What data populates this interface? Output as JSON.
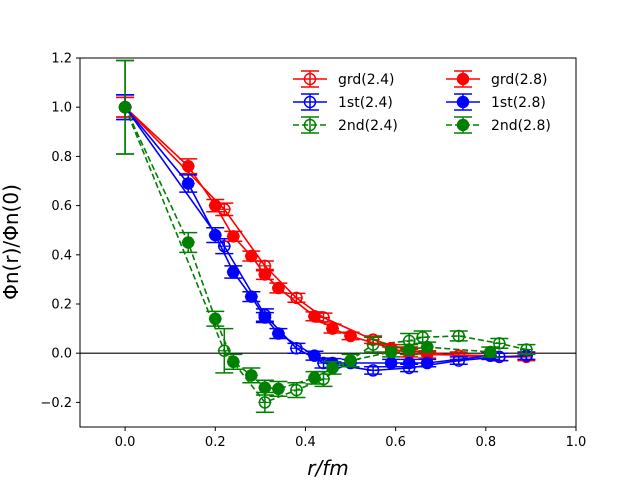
{
  "chart_data": {
    "type": "line",
    "title": "",
    "xlabel": "r/fm",
    "ylabel": "Φn(r)/Φn(0)",
    "xlim": [
      -0.1,
      1.0
    ],
    "ylim": [
      -0.3,
      1.2
    ],
    "xticks": [
      0.0,
      0.2,
      0.4,
      0.6,
      0.8,
      1.0
    ],
    "yticks": [
      -0.2,
      0.0,
      0.2,
      0.4,
      0.6,
      0.8,
      1.0,
      1.2
    ],
    "xtick_labels": [
      "0.0",
      "0.2",
      "0.4",
      "0.6",
      "0.8",
      "1.0"
    ],
    "ytick_labels": [
      "−0.2",
      "0.0",
      "0.2",
      "0.4",
      "0.6",
      "0.8",
      "1.0",
      "1.2"
    ],
    "reference_line_y": 0.0,
    "legend_position": "top-right",
    "legend_columns": 2,
    "series": [
      {
        "name": "grd(2.4)",
        "color": "#ff0000",
        "filled": false,
        "dashed": false,
        "x": [
          0.0,
          0.22,
          0.31,
          0.38,
          0.44,
          0.55,
          0.63,
          0.74,
          0.83,
          0.89
        ],
        "y": [
          1.0,
          0.585,
          0.355,
          0.225,
          0.145,
          0.055,
          0.01,
          -0.01,
          -0.015,
          -0.015
        ],
        "err": [
          0.04,
          0.025,
          0.02,
          0.018,
          0.018,
          0.015,
          0.015,
          0.015,
          0.015,
          0.015
        ]
      },
      {
        "name": "1st(2.4)",
        "color": "#0000ff",
        "filled": false,
        "dashed": false,
        "x": [
          0.0,
          0.22,
          0.31,
          0.38,
          0.44,
          0.55,
          0.63,
          0.74,
          0.83,
          0.89
        ],
        "y": [
          1.0,
          0.435,
          0.155,
          0.02,
          -0.04,
          -0.07,
          -0.06,
          -0.03,
          -0.015,
          -0.01
        ],
        "err": [
          0.05,
          0.03,
          0.025,
          0.02,
          0.02,
          0.015,
          0.015,
          0.015,
          0.015,
          0.015
        ]
      },
      {
        "name": "2nd(2.4)",
        "color": "#008000",
        "filled": false,
        "dashed": true,
        "x": [
          0.0,
          0.22,
          0.31,
          0.38,
          0.44,
          0.55,
          0.63,
          0.66,
          0.74,
          0.83,
          0.89
        ],
        "y": [
          1.0,
          0.01,
          -0.2,
          -0.15,
          -0.105,
          0.035,
          0.05,
          0.065,
          0.07,
          0.04,
          0.015
        ],
        "err": [
          0.19,
          0.09,
          0.04,
          0.03,
          0.03,
          0.03,
          0.03,
          0.025,
          0.02,
          0.02,
          0.02
        ]
      },
      {
        "name": "grd(2.8)",
        "color": "#ff0000",
        "filled": true,
        "dashed": false,
        "x": [
          0.0,
          0.14,
          0.2,
          0.24,
          0.28,
          0.31,
          0.34,
          0.42,
          0.46,
          0.5,
          0.59,
          0.63,
          0.67,
          0.81
        ],
        "y": [
          1.0,
          0.76,
          0.6,
          0.475,
          0.395,
          0.32,
          0.265,
          0.15,
          0.1,
          0.07,
          0.02,
          0.0,
          -0.005,
          -0.01
        ],
        "err": [
          0.04,
          0.03,
          0.025,
          0.02,
          0.02,
          0.02,
          0.02,
          0.018,
          0.018,
          0.015,
          0.015,
          0.015,
          0.015,
          0.015
        ]
      },
      {
        "name": "1st(2.8)",
        "color": "#0000ff",
        "filled": true,
        "dashed": false,
        "x": [
          0.0,
          0.14,
          0.2,
          0.24,
          0.28,
          0.31,
          0.34,
          0.42,
          0.46,
          0.5,
          0.59,
          0.63,
          0.67,
          0.81
        ],
        "y": [
          1.0,
          0.69,
          0.48,
          0.33,
          0.23,
          0.145,
          0.08,
          -0.01,
          -0.04,
          -0.04,
          -0.04,
          -0.04,
          -0.04,
          -0.01
        ],
        "err": [
          0.05,
          0.035,
          0.03,
          0.025,
          0.02,
          0.02,
          0.02,
          0.018,
          0.018,
          0.015,
          0.015,
          0.015,
          0.015,
          0.015
        ]
      },
      {
        "name": "2nd(2.8)",
        "color": "#008000",
        "filled": true,
        "dashed": true,
        "x": [
          0.0,
          0.14,
          0.2,
          0.24,
          0.28,
          0.31,
          0.34,
          0.42,
          0.46,
          0.5,
          0.59,
          0.63,
          0.67,
          0.81
        ],
        "y": [
          1.0,
          0.45,
          0.14,
          -0.035,
          -0.09,
          -0.14,
          -0.145,
          -0.1,
          -0.06,
          -0.03,
          0.005,
          0.015,
          0.025,
          0.005
        ],
        "err": [
          0.19,
          0.04,
          0.03,
          0.03,
          0.03,
          0.03,
          0.03,
          0.025,
          0.025,
          0.025,
          0.02,
          0.02,
          0.02,
          0.02
        ]
      }
    ]
  }
}
